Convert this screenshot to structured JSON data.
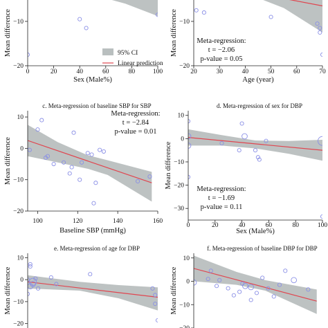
{
  "legend": {
    "ci_label": "95% CI",
    "line_label": "Linear prediction",
    "ci_color": "#b9bfbf",
    "line_color": "#e0454f"
  },
  "styles": {
    "ci_color": "#b9bfbf",
    "line_color": "#e0454f",
    "point_color": "#8a8fe6"
  },
  "chart_data": [
    {
      "id": "a",
      "type": "scatter",
      "title": "",
      "xlabel": "Sex (Male%)",
      "ylabel": "Mean difference",
      "xlim": [
        0,
        100
      ],
      "ylim": [
        -20,
        2
      ],
      "xticks": [
        0,
        20,
        40,
        60,
        80,
        100
      ],
      "yticks": [
        -20,
        -10
      ],
      "annotation": [],
      "fit": {
        "x": [
          0,
          100
        ],
        "y": [
          -1.0,
          -5.0
        ]
      },
      "ci_upper": [
        [
          0,
          0.5
        ],
        [
          25,
          -0.3
        ],
        [
          50,
          -1.5
        ],
        [
          75,
          -2.3
        ],
        [
          100,
          -2.5
        ]
      ],
      "ci_lower": [
        [
          0,
          -2.8
        ],
        [
          25,
          -3.2
        ],
        [
          50,
          -4.0
        ],
        [
          75,
          -6.0
        ],
        [
          100,
          -8.8
        ]
      ],
      "points": [
        {
          "x": 0,
          "y": -3.6,
          "w": 3
        },
        {
          "x": 0,
          "y": -17.5,
          "w": 2
        },
        {
          "x": 40,
          "y": -9.5,
          "w": 2
        },
        {
          "x": 45,
          "y": -11.5,
          "w": 2
        },
        {
          "x": 45,
          "y": -2.5,
          "w": 2
        },
        {
          "x": 60,
          "y": -1.5,
          "w": 2
        },
        {
          "x": 100,
          "y": -8.5,
          "w": 2
        },
        {
          "x": 100,
          "y": -2.8,
          "w": 5
        }
      ]
    },
    {
      "id": "b",
      "type": "scatter",
      "title": "",
      "xlabel": "Age (year)",
      "ylabel": "Mean difference",
      "xlim": [
        20,
        70
      ],
      "ylim": [
        -20,
        2
      ],
      "xticks": [
        20,
        30,
        40,
        50,
        60,
        70
      ],
      "yticks": [
        -20,
        -10
      ],
      "annotation": [
        "Meta-regression:",
        "t = −2.06",
        "p-value = 0.05"
      ],
      "fit": {
        "x": [
          20,
          70
        ],
        "y": [
          -1.0,
          -6.5
        ]
      },
      "ci_upper": [
        [
          20,
          1.5
        ],
        [
          40,
          -1.5
        ],
        [
          55,
          -2.0
        ],
        [
          70,
          -3.5
        ]
      ],
      "ci_lower": [
        [
          20,
          -3.5
        ],
        [
          40,
          -3.6
        ],
        [
          55,
          -7.0
        ],
        [
          70,
          -12.5
        ]
      ],
      "points": [
        {
          "x": 20,
          "y": -1.5,
          "w": 2
        },
        {
          "x": 21,
          "y": -2.5,
          "w": 4
        },
        {
          "x": 22,
          "y": -1.0,
          "w": 3
        },
        {
          "x": 21,
          "y": -7.5,
          "w": 2
        },
        {
          "x": 24,
          "y": -8.0,
          "w": 2
        },
        {
          "x": 29,
          "y": -2.0,
          "w": 2
        },
        {
          "x": 50,
          "y": -9.0,
          "w": 2
        },
        {
          "x": 68,
          "y": -10.5,
          "w": 2
        },
        {
          "x": 69,
          "y": -11.5,
          "w": 2
        },
        {
          "x": 69,
          "y": -12.5,
          "w": 2
        },
        {
          "x": 70,
          "y": -17.5,
          "w": 2
        }
      ]
    },
    {
      "id": "c",
      "type": "scatter",
      "title": "c. Meta-regression of baseline SBP for SBP",
      "xlabel": "Baseline SBP (mmHg)",
      "ylabel": "Mean difference",
      "xlim": [
        95,
        160
      ],
      "ylim": [
        -20,
        12
      ],
      "xticks": [
        100,
        120,
        140,
        160
      ],
      "yticks": [
        -20,
        -10,
        0,
        10
      ],
      "annotation": [
        "Meta-regression:",
        "t = −2.84",
        "p-value = 0.01"
      ],
      "fit": {
        "x": [
          95,
          157
        ],
        "y": [
          2.5,
          -11.0
        ]
      },
      "ci_upper": [
        [
          95,
          7.5
        ],
        [
          110,
          2.0
        ],
        [
          125,
          -2.2
        ],
        [
          135,
          -3.8
        ],
        [
          157,
          -7.5
        ]
      ],
      "ci_lower": [
        [
          95,
          -2.5
        ],
        [
          110,
          -4.5
        ],
        [
          125,
          -6.5
        ],
        [
          135,
          -8.5
        ],
        [
          157,
          -17.0
        ]
      ],
      "points": [
        {
          "x": 96,
          "y": -0.5,
          "w": 2
        },
        {
          "x": 100,
          "y": 6.0,
          "w": 2
        },
        {
          "x": 102,
          "y": 9.0,
          "w": 2
        },
        {
          "x": 104,
          "y": -3.0,
          "w": 2
        },
        {
          "x": 105,
          "y": -2.5,
          "w": 2
        },
        {
          "x": 108,
          "y": -5.0,
          "w": 2
        },
        {
          "x": 113,
          "y": -4.5,
          "w": 2
        },
        {
          "x": 116,
          "y": -8.0,
          "w": 2
        },
        {
          "x": 117,
          "y": -6.0,
          "w": 2
        },
        {
          "x": 118,
          "y": 5.0,
          "w": 2
        },
        {
          "x": 121,
          "y": -10.0,
          "w": 2
        },
        {
          "x": 122,
          "y": -4.5,
          "w": 2
        },
        {
          "x": 125,
          "y": -1.5,
          "w": 2
        },
        {
          "x": 127,
          "y": -2.0,
          "w": 2
        },
        {
          "x": 128,
          "y": -17.5,
          "w": 2
        },
        {
          "x": 129,
          "y": -11.0,
          "w": 2
        },
        {
          "x": 131,
          "y": -0.5,
          "w": 2
        },
        {
          "x": 133,
          "y": -1.0,
          "w": 2
        },
        {
          "x": 150,
          "y": -10.5,
          "w": 2
        },
        {
          "x": 156,
          "y": -9.0,
          "w": 2
        }
      ]
    },
    {
      "id": "d",
      "type": "scatter",
      "title": "d. Meta-regression of sex for DBP",
      "xlabel": "Sex (Male%)",
      "ylabel": "Mean difference",
      "xlim": [
        0,
        100
      ],
      "ylim": [
        -35,
        12
      ],
      "xticks": [
        0,
        20,
        40,
        60,
        80,
        100
      ],
      "yticks": [
        -30,
        -20,
        -10,
        0,
        10
      ],
      "annotation": [
        "Meta-regression:",
        "t = −1.69",
        "p-value = 0.11"
      ],
      "fit": {
        "x": [
          0,
          100
        ],
        "y": [
          0.5,
          -5.0
        ]
      },
      "ci_upper": [
        [
          0,
          4.0
        ],
        [
          25,
          1.5
        ],
        [
          50,
          -0.8
        ],
        [
          75,
          -1.0
        ],
        [
          100,
          -0.5
        ]
      ],
      "ci_lower": [
        [
          0,
          -3.0
        ],
        [
          25,
          -3.0
        ],
        [
          50,
          -4.2
        ],
        [
          75,
          -6.5
        ],
        [
          100,
          -9.5
        ]
      ],
      "points": [
        {
          "x": 0,
          "y": 1.0,
          "w": 3
        },
        {
          "x": 0,
          "y": 7.5,
          "w": 2
        },
        {
          "x": 0,
          "y": -3.0,
          "w": 3
        },
        {
          "x": 0,
          "y": -16.5,
          "w": 2
        },
        {
          "x": 25,
          "y": -2.0,
          "w": 2
        },
        {
          "x": 38,
          "y": -5.0,
          "w": 2
        },
        {
          "x": 40,
          "y": 6.5,
          "w": 2
        },
        {
          "x": 42,
          "y": 1.0,
          "w": 3
        },
        {
          "x": 50,
          "y": -5.0,
          "w": 2
        },
        {
          "x": 52,
          "y": -8.0,
          "w": 2
        },
        {
          "x": 53,
          "y": -9.0,
          "w": 2
        },
        {
          "x": 58,
          "y": -1.0,
          "w": 2
        },
        {
          "x": 100,
          "y": -1.0,
          "w": 5
        },
        {
          "x": 100,
          "y": -33.5,
          "w": 2
        }
      ]
    },
    {
      "id": "e",
      "type": "scatter",
      "title": "e. Meta-regression of age for DBP",
      "xlabel": "",
      "ylabel": "Mean difference",
      "xlim": [
        20,
        70
      ],
      "ylim": [
        -22,
        12
      ],
      "xticks": [],
      "yticks": [
        -20,
        -10,
        0,
        10
      ],
      "annotation": [],
      "fit": {
        "x": [
          20,
          70
        ],
        "y": [
          -1.0,
          -8.0
        ]
      },
      "ci_upper": [
        [
          20,
          2.0
        ],
        [
          40,
          -1.0
        ],
        [
          55,
          -2.5
        ],
        [
          70,
          -3.5
        ]
      ],
      "ci_lower": [
        [
          20,
          -4.0
        ],
        [
          40,
          -5.0
        ],
        [
          55,
          -8.5
        ],
        [
          70,
          -14.0
        ]
      ],
      "points": [
        {
          "x": 20,
          "y": 0.0,
          "w": 2
        },
        {
          "x": 20,
          "y": -6.5,
          "w": 2
        },
        {
          "x": 21,
          "y": 7.0,
          "w": 2
        },
        {
          "x": 21,
          "y": 6.0,
          "w": 2
        },
        {
          "x": 21,
          "y": -3.0,
          "w": 3
        },
        {
          "x": 22,
          "y": -1.0,
          "w": 4
        },
        {
          "x": 22,
          "y": -2.0,
          "w": 3
        },
        {
          "x": 23,
          "y": 0.5,
          "w": 2
        },
        {
          "x": 24,
          "y": -4.0,
          "w": 2
        },
        {
          "x": 29,
          "y": 1.0,
          "w": 2
        },
        {
          "x": 31,
          "y": -2.0,
          "w": 2
        },
        {
          "x": 44,
          "y": 2.5,
          "w": 2
        },
        {
          "x": 68,
          "y": -4.0,
          "w": 2
        },
        {
          "x": 69,
          "y": -7.0,
          "w": 2
        },
        {
          "x": 69,
          "y": -11.0,
          "w": 2
        },
        {
          "x": 70,
          "y": -18.5,
          "w": 2
        }
      ]
    },
    {
      "id": "f",
      "type": "scatter",
      "title": "f. Meta-regression of baseline DBP for DBP",
      "xlabel": "",
      "ylabel": "Mean difference",
      "xlim": [
        60,
        105
      ],
      "ylim": [
        -20,
        12
      ],
      "xticks": [],
      "yticks": [
        -20,
        -10,
        0,
        10
      ],
      "annotation": [],
      "fit": {
        "x": [
          60,
          103
        ],
        "y": [
          5.5,
          -8.5
        ]
      },
      "ci_upper": [
        [
          60,
          11.0
        ],
        [
          75,
          4.0
        ],
        [
          85,
          0.5
        ],
        [
          103,
          -3.5
        ]
      ],
      "ci_lower": [
        [
          60,
          0.0
        ],
        [
          75,
          -1.5
        ],
        [
          85,
          -4.0
        ],
        [
          103,
          -14.0
        ]
      ],
      "points": [
        {
          "x": 60,
          "y": -0.5,
          "w": 3
        },
        {
          "x": 65,
          "y": 1.0,
          "w": 2
        },
        {
          "x": 66,
          "y": 4.5,
          "w": 2
        },
        {
          "x": 68,
          "y": -2.0,
          "w": 2
        },
        {
          "x": 69,
          "y": 0.5,
          "w": 2
        },
        {
          "x": 72,
          "y": -3.0,
          "w": 2
        },
        {
          "x": 74,
          "y": -6.0,
          "w": 2
        },
        {
          "x": 76,
          "y": -4.5,
          "w": 2
        },
        {
          "x": 77,
          "y": -1.0,
          "w": 2
        },
        {
          "x": 78,
          "y": -2.0,
          "w": 3
        },
        {
          "x": 80,
          "y": -2.5,
          "w": 3
        },
        {
          "x": 80,
          "y": -8.0,
          "w": 2
        },
        {
          "x": 82,
          "y": -5.0,
          "w": 2
        },
        {
          "x": 84,
          "y": 1.5,
          "w": 2
        },
        {
          "x": 86,
          "y": -3.0,
          "w": 2
        },
        {
          "x": 88,
          "y": -6.5,
          "w": 2
        },
        {
          "x": 90,
          "y": -1.5,
          "w": 2
        },
        {
          "x": 92,
          "y": 4.5,
          "w": 2
        },
        {
          "x": 95,
          "y": 0.5,
          "w": 3
        },
        {
          "x": 100,
          "y": -3.5,
          "w": 2
        }
      ]
    }
  ]
}
